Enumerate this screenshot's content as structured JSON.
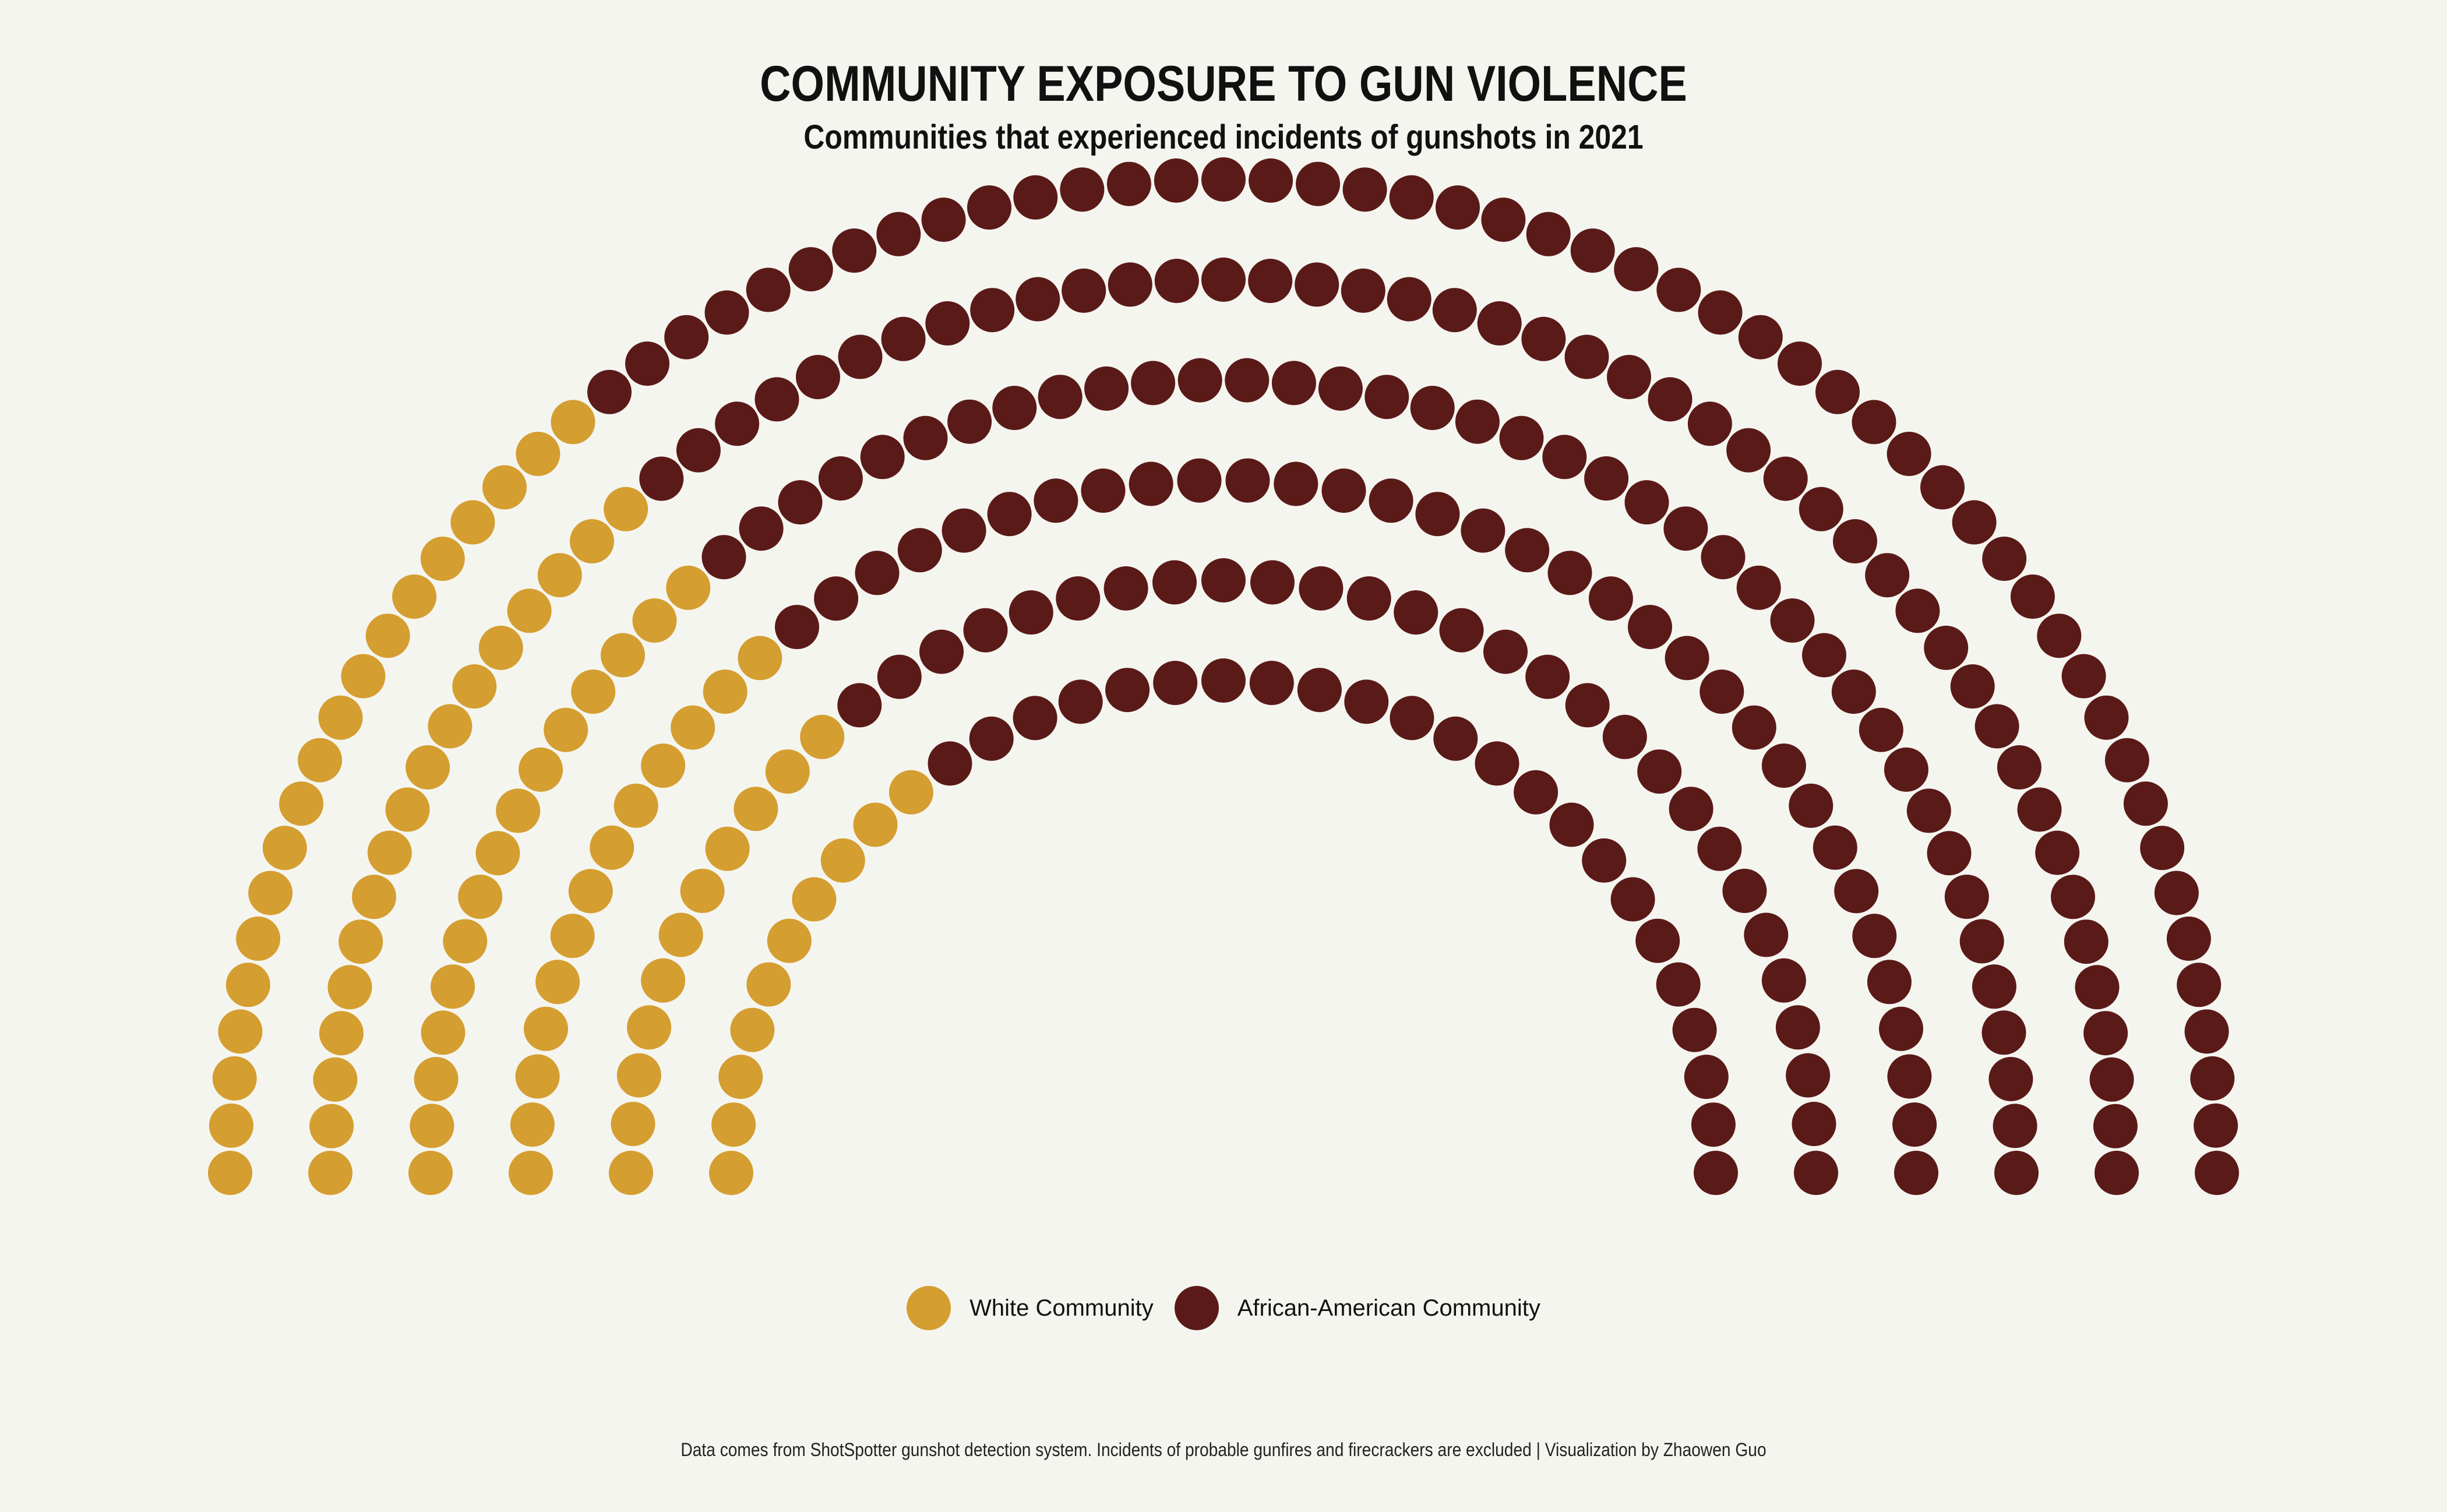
{
  "title": "COMMUNITY EXPOSURE TO GUN VIOLENCE",
  "subtitle": "Communities that experienced incidents of gunshots in 2021",
  "caption": "Data comes from ShotSpotter gunshot detection system. Incidents of probable gunfires and firecrackers are excluded | Visualization by Zhaowen Guo",
  "colors": {
    "background": "#f5f5f0",
    "white_community": "#d49e30",
    "african_american_community": "#5a1a18"
  },
  "chart_data": {
    "type": "parliament",
    "series": [
      {
        "name": "White Community",
        "value": 85,
        "color": "#d49e30"
      },
      {
        "name": "African-American Community",
        "value": 215,
        "color": "#5a1a18"
      }
    ],
    "rows": 6,
    "legend_position": "bottom"
  },
  "legend": [
    {
      "label": "White Community",
      "color": "#d49e30"
    },
    {
      "label": "African-American Community",
      "color": "#5a1a18"
    }
  ]
}
